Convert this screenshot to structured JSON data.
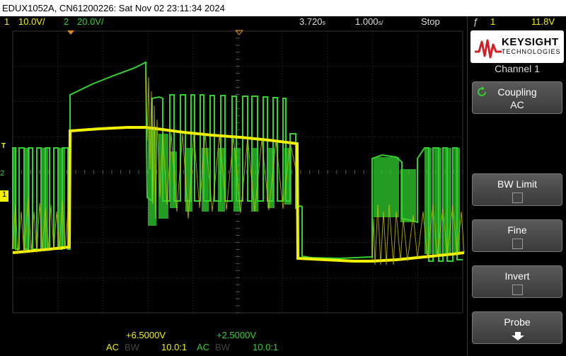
{
  "title_bar": "EDUX1052A, CN61200226: Sat Nov 02 23:11:34 2024",
  "status": {
    "ch1_num": "1",
    "ch1_scale": "10.0V/",
    "ch2_num": "2",
    "ch2_scale": "20.0V/",
    "delay": "3.720",
    "delay_unit": "s",
    "timebase": "1.000",
    "timebase_unit": "s/",
    "run_state": "Stop",
    "trigger_source": "1",
    "trigger_level": "11.8V"
  },
  "softkeys": {
    "brand_name": "KEYSIGHT",
    "brand_sub": "TECHNOLOGIES",
    "menu_title": "Channel 1",
    "coupling_label": "Coupling",
    "coupling_value": "AC",
    "bw_limit_label": "BW Limit",
    "fine_label": "Fine",
    "invert_label": "Invert",
    "probe_label": "Probe"
  },
  "channel_info": {
    "ch1_offset": "+6.5000V",
    "ch2_offset": "+2.5000V",
    "ch1_coupling": "AC",
    "ch1_bw": "BW",
    "ch1_probe": "10.0:1",
    "ch2_coupling": "AC",
    "ch2_bw": "BW",
    "ch2_probe": "10.0:1"
  },
  "markers": {
    "ch2_marker": "2",
    "ch1_marker": "1",
    "trigger_marker": "T"
  },
  "colors": {
    "ch1": "#f2f200",
    "ch2": "#31d12f",
    "grid": "#3a3a3a"
  }
}
